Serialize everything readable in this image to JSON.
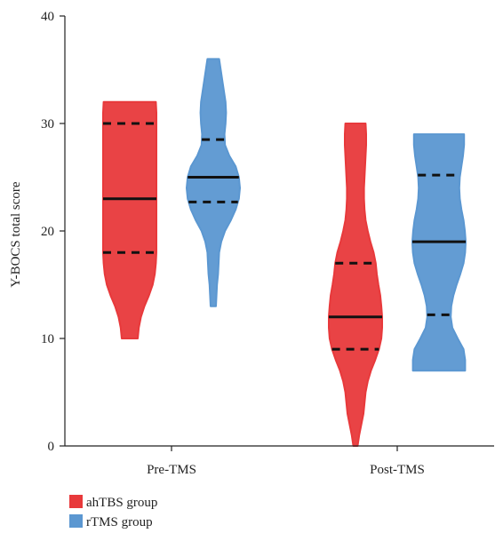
{
  "chart_data": {
    "type": "violin",
    "title": "",
    "xlabel": "",
    "ylabel": "Y-BOCS total score",
    "ylim": [
      0,
      40
    ],
    "yticks": [
      0,
      10,
      20,
      30,
      40
    ],
    "categories": [
      "Pre-TMS",
      "Post-TMS"
    ],
    "grid": false,
    "legend_position": "bottom-left",
    "series": [
      {
        "name": "ahTBS group",
        "color": "#e8393b",
        "groups": [
          {
            "category": "Pre-TMS",
            "min": 10,
            "max": 32,
            "q1": 18,
            "median": 23,
            "q3": 30,
            "profile": [
              [
                10,
                0.3
              ],
              [
                11,
                0.34
              ],
              [
                12,
                0.42
              ],
              [
                13,
                0.55
              ],
              [
                14,
                0.72
              ],
              [
                15,
                0.86
              ],
              [
                16,
                0.94
              ],
              [
                17,
                0.98
              ],
              [
                18,
                1.0
              ],
              [
                19,
                1.0
              ],
              [
                20,
                1.0
              ],
              [
                21,
                1.0
              ],
              [
                22,
                1.0
              ],
              [
                23,
                1.0
              ],
              [
                24,
                1.0
              ],
              [
                25,
                1.0
              ],
              [
                26,
                1.0
              ],
              [
                27,
                1.0
              ],
              [
                28,
                1.0
              ],
              [
                29,
                1.0
              ],
              [
                30,
                1.0
              ],
              [
                31,
                1.0
              ],
              [
                32,
                0.98
              ]
            ]
          },
          {
            "category": "Post-TMS",
            "min": 0,
            "max": 30,
            "q1": 9,
            "median": 12,
            "q3": 17,
            "profile": [
              [
                0,
                0.08
              ],
              [
                1,
                0.14
              ],
              [
                2,
                0.22
              ],
              [
                3,
                0.3
              ],
              [
                4,
                0.34
              ],
              [
                5,
                0.38
              ],
              [
                6,
                0.46
              ],
              [
                7,
                0.58
              ],
              [
                8,
                0.74
              ],
              [
                9,
                0.88
              ],
              [
                10,
                0.97
              ],
              [
                11,
                1.0
              ],
              [
                12,
                1.0
              ],
              [
                13,
                0.97
              ],
              [
                14,
                0.93
              ],
              [
                15,
                0.86
              ],
              [
                16,
                0.8
              ],
              [
                17,
                0.76
              ],
              [
                18,
                0.68
              ],
              [
                19,
                0.56
              ],
              [
                20,
                0.46
              ],
              [
                21,
                0.38
              ],
              [
                22,
                0.34
              ],
              [
                23,
                0.32
              ],
              [
                24,
                0.32
              ],
              [
                25,
                0.34
              ],
              [
                26,
                0.36
              ],
              [
                27,
                0.38
              ],
              [
                28,
                0.4
              ],
              [
                29,
                0.4
              ],
              [
                30,
                0.38
              ]
            ]
          }
        ]
      },
      {
        "name": "rTMS group",
        "color": "#5b97d1",
        "groups": [
          {
            "category": "Pre-TMS",
            "min": 13,
            "max": 36,
            "q1": 22.7,
            "median": 25,
            "q3": 28.5,
            "profile": [
              [
                13,
                0.1
              ],
              [
                14,
                0.12
              ],
              [
                15,
                0.14
              ],
              [
                16,
                0.18
              ],
              [
                17,
                0.2
              ],
              [
                18,
                0.22
              ],
              [
                19,
                0.3
              ],
              [
                20,
                0.44
              ],
              [
                21,
                0.66
              ],
              [
                22,
                0.84
              ],
              [
                23,
                0.96
              ],
              [
                24,
                1.0
              ],
              [
                25,
                0.96
              ],
              [
                26,
                0.84
              ],
              [
                27,
                0.6
              ],
              [
                28,
                0.44
              ],
              [
                29,
                0.42
              ],
              [
                30,
                0.46
              ],
              [
                31,
                0.48
              ],
              [
                32,
                0.46
              ],
              [
                33,
                0.4
              ],
              [
                34,
                0.34
              ],
              [
                35,
                0.28
              ],
              [
                36,
                0.22
              ]
            ]
          },
          {
            "category": "Post-TMS",
            "min": 7,
            "max": 29,
            "q1": 12.2,
            "median": 19,
            "q3": 25.2,
            "profile": [
              [
                7,
                0.98
              ],
              [
                8,
                0.98
              ],
              [
                9,
                0.92
              ],
              [
                10,
                0.7
              ],
              [
                11,
                0.5
              ],
              [
                12,
                0.44
              ],
              [
                13,
                0.46
              ],
              [
                14,
                0.54
              ],
              [
                15,
                0.66
              ],
              [
                16,
                0.8
              ],
              [
                17,
                0.92
              ],
              [
                18,
                0.98
              ],
              [
                19,
                1.0
              ],
              [
                20,
                0.97
              ],
              [
                21,
                0.92
              ],
              [
                22,
                0.84
              ],
              [
                23,
                0.78
              ],
              [
                24,
                0.76
              ],
              [
                25,
                0.78
              ],
              [
                26,
                0.84
              ],
              [
                27,
                0.9
              ],
              [
                28,
                0.94
              ],
              [
                29,
                0.94
              ]
            ]
          }
        ]
      }
    ]
  }
}
